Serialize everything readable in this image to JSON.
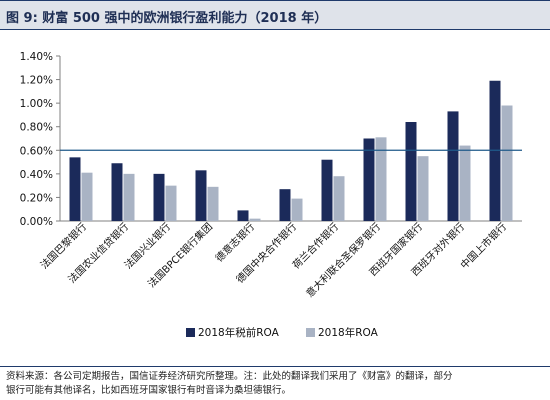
{
  "title": "图 9:  财富 500 强中的欧洲银行盈利能力（2018 年）",
  "source_line1": "资料来源：各公司定期报告，国信证券经济研究所整理。注：此处的翻译我们采用了《财富》的翻译，部分",
  "source_line2": "银行可能有其他译名，比如西班牙国家银行有时音译为桑坦德银行。",
  "chart_data": {
    "type": "bar",
    "categories": [
      "法国巴黎银行",
      "法国农业信贷银行",
      "法国兴业银行",
      "法国BPCE银行集团",
      "德意志银行",
      "德国中央合作银行",
      "荷兰合作银行",
      "意大利联合圣保罗银行",
      "西班牙国家银行",
      "西班牙对外银行",
      "中国上市银行"
    ],
    "series": [
      {
        "name": "2018年税前ROA",
        "color": "#1b2a5a",
        "values": [
          0.54,
          0.49,
          0.4,
          0.43,
          0.09,
          0.27,
          0.52,
          0.7,
          0.84,
          0.93,
          1.19
        ]
      },
      {
        "name": "2018年ROA",
        "color": "#a9b3c4",
        "values": [
          0.41,
          0.4,
          0.3,
          0.29,
          0.02,
          0.19,
          0.38,
          0.71,
          0.55,
          0.64,
          0.98
        ]
      }
    ],
    "reference_line": {
      "value": 0.6,
      "color": "#1f5a8a"
    },
    "ylim": [
      0,
      1.4
    ],
    "yticks": [
      "0.00%",
      "0.20%",
      "0.40%",
      "0.60%",
      "0.80%",
      "1.00%",
      "1.20%",
      "1.40%"
    ],
    "ytick_values": [
      0,
      0.2,
      0.4,
      0.6,
      0.8,
      1.0,
      1.2,
      1.4
    ],
    "legend_position": "bottom",
    "grid": false
  }
}
